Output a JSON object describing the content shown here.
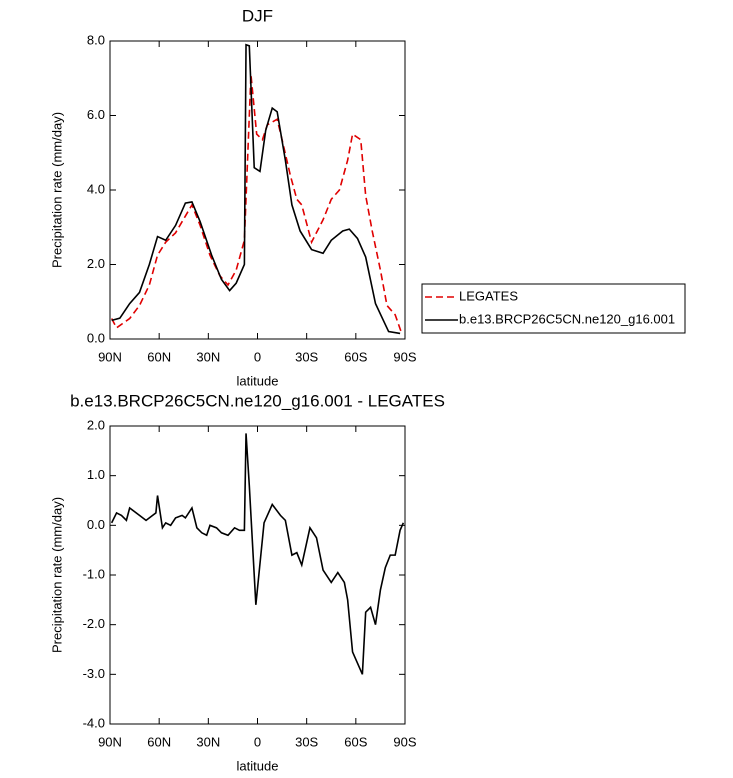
{
  "chart_data": [
    {
      "type": "line",
      "title": "DJF",
      "xlabel": "latitude",
      "ylabel": "Precipitation rate (mm/day)",
      "xlim": [
        90,
        -90
      ],
      "ylim": [
        0,
        8
      ],
      "xticks": [
        {
          "value": 90,
          "label": "90N"
        },
        {
          "value": 60,
          "label": "60N"
        },
        {
          "value": 30,
          "label": "30N"
        },
        0,
        {
          "value": -30,
          "label": "30S"
        },
        {
          "value": -60,
          "label": "60S"
        },
        {
          "value": -90,
          "label": "90S"
        }
      ],
      "yticks": [
        {
          "value": 0,
          "label": "0.0"
        },
        {
          "value": 2,
          "label": "2.0"
        },
        {
          "value": 4,
          "label": "4.0"
        },
        {
          "value": 6,
          "label": "6.0"
        },
        {
          "value": 8,
          "label": "8.0"
        }
      ],
      "legend": true,
      "legend_position": "right",
      "series": [
        {
          "name": "LEGATES",
          "color": "#e00000",
          "linestyle": "dashed",
          "x": [
            89,
            86,
            78,
            72,
            66,
            61,
            56,
            50,
            44,
            40,
            35,
            29,
            23,
            18,
            13,
            8,
            4,
            0.5,
            -3,
            -6,
            -12,
            -15,
            -20,
            -24,
            -27,
            -33,
            -40,
            -45,
            -50,
            -55,
            -58,
            -63,
            -66,
            -70,
            -75,
            -79,
            -84,
            -88
          ],
          "values": [
            0.55,
            0.3,
            0.55,
            0.9,
            1.45,
            2.25,
            2.6,
            2.85,
            3.3,
            3.6,
            3.05,
            2.25,
            1.7,
            1.45,
            1.85,
            2.65,
            7.1,
            5.5,
            5.35,
            5.75,
            5.9,
            5.35,
            4.4,
            3.75,
            3.6,
            2.6,
            3.2,
            3.75,
            4.0,
            4.8,
            5.5,
            5.35,
            3.85,
            2.9,
            1.85,
            0.9,
            0.65,
            0.15
          ]
        },
        {
          "name": "b.e13.BRCP26C5CN.ne120_g16.001",
          "color": "#000000",
          "linestyle": "solid",
          "x": [
            89,
            84,
            78,
            72,
            66,
            61,
            56,
            50,
            44,
            40,
            35,
            28,
            22,
            17,
            13,
            8,
            7,
            5,
            2,
            -1.5,
            -5,
            -9,
            -12,
            -17,
            -21,
            -26,
            -33,
            -40,
            -45,
            -52,
            -56,
            -61,
            -66,
            -72,
            -80,
            -87
          ],
          "values": [
            0.5,
            0.56,
            0.95,
            1.25,
            2.0,
            2.75,
            2.65,
            3.05,
            3.65,
            3.68,
            3.15,
            2.25,
            1.6,
            1.3,
            1.5,
            2.0,
            7.9,
            7.87,
            4.6,
            4.5,
            5.6,
            6.2,
            6.1,
            4.8,
            3.6,
            2.9,
            2.4,
            2.3,
            2.65,
            2.9,
            2.95,
            2.7,
            2.2,
            0.95,
            0.2,
            0.15
          ]
        }
      ]
    },
    {
      "type": "line",
      "title": "b.e13.BRCP26C5CN.ne120_g16.001 - LEGATES",
      "xlabel": "latitude",
      "ylabel": "Precipitation rate (mm/day)",
      "xlim": [
        90,
        -90
      ],
      "ylim": [
        -4,
        2
      ],
      "xticks": [
        {
          "value": 90,
          "label": "90N"
        },
        {
          "value": 60,
          "label": "60N"
        },
        {
          "value": 30,
          "label": "30N"
        },
        0,
        {
          "value": -30,
          "label": "30S"
        },
        {
          "value": -60,
          "label": "60S"
        },
        {
          "value": -90,
          "label": "90S"
        }
      ],
      "yticks": [
        {
          "value": -4,
          "label": "-4.0"
        },
        {
          "value": -3,
          "label": "-3.0"
        },
        {
          "value": -2,
          "label": "-2.0"
        },
        {
          "value": -1,
          "label": "-1.0"
        },
        {
          "value": 0,
          "label": "0.0"
        },
        {
          "value": 1,
          "label": "1.0"
        },
        {
          "value": 2,
          "label": "2.0"
        }
      ],
      "legend": false,
      "color": "#000000",
      "x": [
        89,
        86,
        83,
        80,
        78,
        72,
        68,
        64,
        62,
        61,
        58,
        56,
        53,
        50,
        46,
        44,
        40,
        37,
        34,
        31,
        29,
        25,
        22,
        18,
        14,
        11,
        8,
        7,
        5,
        1,
        -4,
        -9,
        -14,
        -17,
        -21,
        -24,
        -27,
        -32,
        -36,
        -40,
        -45,
        -49,
        -53,
        -55,
        -58,
        -64,
        -66,
        -69,
        -72,
        -75,
        -78,
        -81,
        -84,
        -87,
        -89
      ],
      "values": [
        0.05,
        0.25,
        0.2,
        0.1,
        0.35,
        0.2,
        0.1,
        0.2,
        0.25,
        0.6,
        -0.05,
        0.05,
        0,
        0.15,
        0.2,
        0.15,
        0.35,
        -0.05,
        -0.15,
        -0.2,
        0,
        -0.05,
        -0.15,
        -0.2,
        -0.05,
        -0.1,
        -0.1,
        1.85,
        0.8,
        -1.6,
        0.05,
        0.42,
        0.2,
        0.1,
        -0.6,
        -0.55,
        -0.8,
        -0.05,
        -0.25,
        -0.9,
        -1.15,
        -0.95,
        -1.15,
        -1.5,
        -2.55,
        -3.0,
        -1.75,
        -1.65,
        -2.0,
        -1.3,
        -0.85,
        -0.6,
        -0.6,
        -0.1,
        0.05
      ]
    }
  ]
}
